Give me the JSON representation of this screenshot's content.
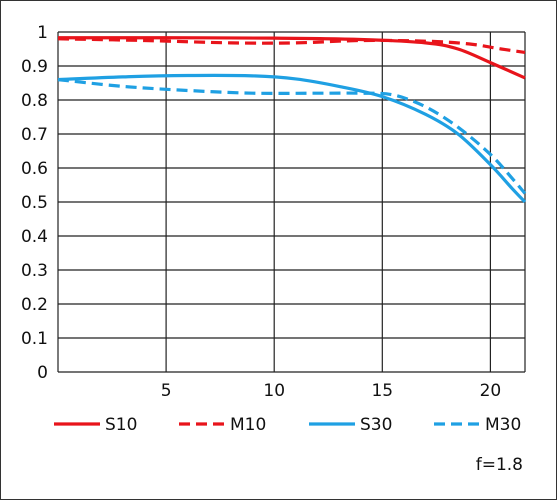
{
  "chart_data": {
    "type": "line",
    "title": "",
    "xlabel": "",
    "ylabel": "",
    "xlim": [
      0,
      21.6
    ],
    "ylim": [
      0,
      1
    ],
    "x_ticks": [
      5,
      10,
      15,
      20
    ],
    "x_tick_labels": [
      "5",
      "10",
      "15",
      "20"
    ],
    "y_ticks": [
      0,
      0.1,
      0.2,
      0.3,
      0.4,
      0.5,
      0.6,
      0.7,
      0.8,
      0.9,
      1
    ],
    "y_tick_labels": [
      "0",
      "0.1",
      "0.2",
      "0.3",
      "0.4",
      "0.5",
      "0.6",
      "0.7",
      "0.8",
      "0.9",
      "1"
    ],
    "grid": true,
    "legend_position": "bottom",
    "annotation": "f=1.8",
    "series": [
      {
        "name": "S10",
        "color": "#e8141b",
        "dash": "solid",
        "points": [
          [
            0,
            0.983
          ],
          [
            5,
            0.983
          ],
          [
            10,
            0.982
          ],
          [
            14,
            0.978
          ],
          [
            17,
            0.968
          ],
          [
            18.5,
            0.95
          ],
          [
            20,
            0.91
          ],
          [
            21.6,
            0.865
          ]
        ]
      },
      {
        "name": "M10",
        "color": "#e8141b",
        "dash": "dashed",
        "points": [
          [
            0,
            0.98
          ],
          [
            4,
            0.975
          ],
          [
            8,
            0.968
          ],
          [
            11,
            0.968
          ],
          [
            14,
            0.975
          ],
          [
            17,
            0.973
          ],
          [
            19,
            0.965
          ],
          [
            20.5,
            0.95
          ],
          [
            21.6,
            0.94
          ]
        ]
      },
      {
        "name": "S30",
        "color": "#1fa0e3",
        "dash": "solid",
        "points": [
          [
            0,
            0.86
          ],
          [
            3,
            0.868
          ],
          [
            6,
            0.872
          ],
          [
            9,
            0.871
          ],
          [
            11,
            0.862
          ],
          [
            13,
            0.84
          ],
          [
            15,
            0.81
          ],
          [
            17,
            0.758
          ],
          [
            18.5,
            0.7
          ],
          [
            20,
            0.61
          ],
          [
            21,
            0.54
          ],
          [
            21.6,
            0.5
          ]
        ]
      },
      {
        "name": "M30",
        "color": "#1fa0e3",
        "dash": "dashed",
        "points": [
          [
            0,
            0.86
          ],
          [
            3,
            0.84
          ],
          [
            6,
            0.828
          ],
          [
            9,
            0.82
          ],
          [
            12,
            0.82
          ],
          [
            14,
            0.82
          ],
          [
            15.5,
            0.815
          ],
          [
            17,
            0.78
          ],
          [
            18.5,
            0.72
          ],
          [
            20,
            0.64
          ],
          [
            21,
            0.57
          ],
          [
            21.6,
            0.525
          ]
        ]
      }
    ]
  }
}
